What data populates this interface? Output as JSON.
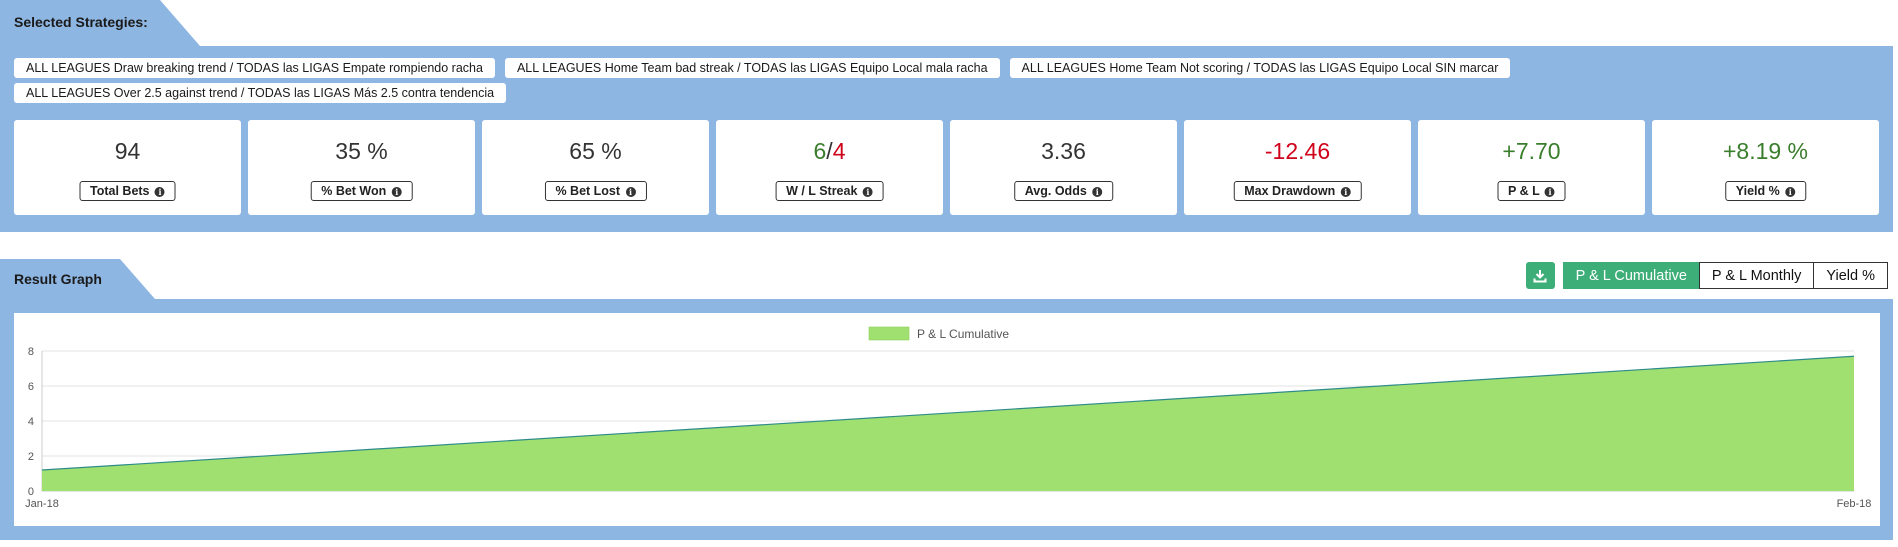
{
  "selected_strategies": {
    "title": "Selected Strategies:",
    "items": [
      "ALL LEAGUES Draw breaking trend / TODAS las LIGAS Empate rompiendo racha",
      "ALL LEAGUES Home Team bad streak / TODAS las LIGAS Equipo Local mala racha",
      "ALL LEAGUES Home Team Not scoring / TODAS las LIGAS Equipo Local SIN marcar",
      "ALL LEAGUES Over 2.5 against trend / TODAS las LIGAS Más 2.5 contra tendencia"
    ]
  },
  "stats": {
    "total_bets": {
      "value": "94",
      "label": "Total Bets"
    },
    "bet_won": {
      "value": "35 %",
      "label": "% Bet Won"
    },
    "bet_lost": {
      "value": "65 %",
      "label": "% Bet Lost"
    },
    "wl_streak": {
      "win": "6",
      "sep": "/",
      "loss": "4",
      "label": "W / L Streak"
    },
    "avg_odds": {
      "value": "3.36",
      "label": "Avg. Odds"
    },
    "max_drawdown": {
      "value": "-12.46",
      "label": "Max Drawdown"
    },
    "pnl": {
      "value": "+7.70",
      "label": "P & L"
    },
    "yield": {
      "value": "+8.19 %",
      "label": "Yield %"
    }
  },
  "result_graph": {
    "title": "Result Graph",
    "tabs": {
      "cumulative": "P & L Cumulative",
      "monthly": "P & L Monthly",
      "yield": "Yield %"
    },
    "active_tab": "P & L Cumulative",
    "download_icon": "download-icon"
  },
  "colors": {
    "panel": "#8eb6e2",
    "accent_green": "#3dae77",
    "positive": "#3a7d2c",
    "negative": "#d0021b",
    "area_fill": "#a0e070",
    "area_line": "#2e8b8b"
  },
  "chart_data": {
    "type": "area",
    "categories": [
      "Jan-18",
      "Feb-18"
    ],
    "series": [
      {
        "name": "P & L Cumulative",
        "values": [
          1.2,
          7.7
        ]
      }
    ],
    "ylim": [
      0,
      8
    ],
    "yticks": [
      0,
      2,
      4,
      6,
      8
    ],
    "legend": "top-center",
    "grid": true
  }
}
